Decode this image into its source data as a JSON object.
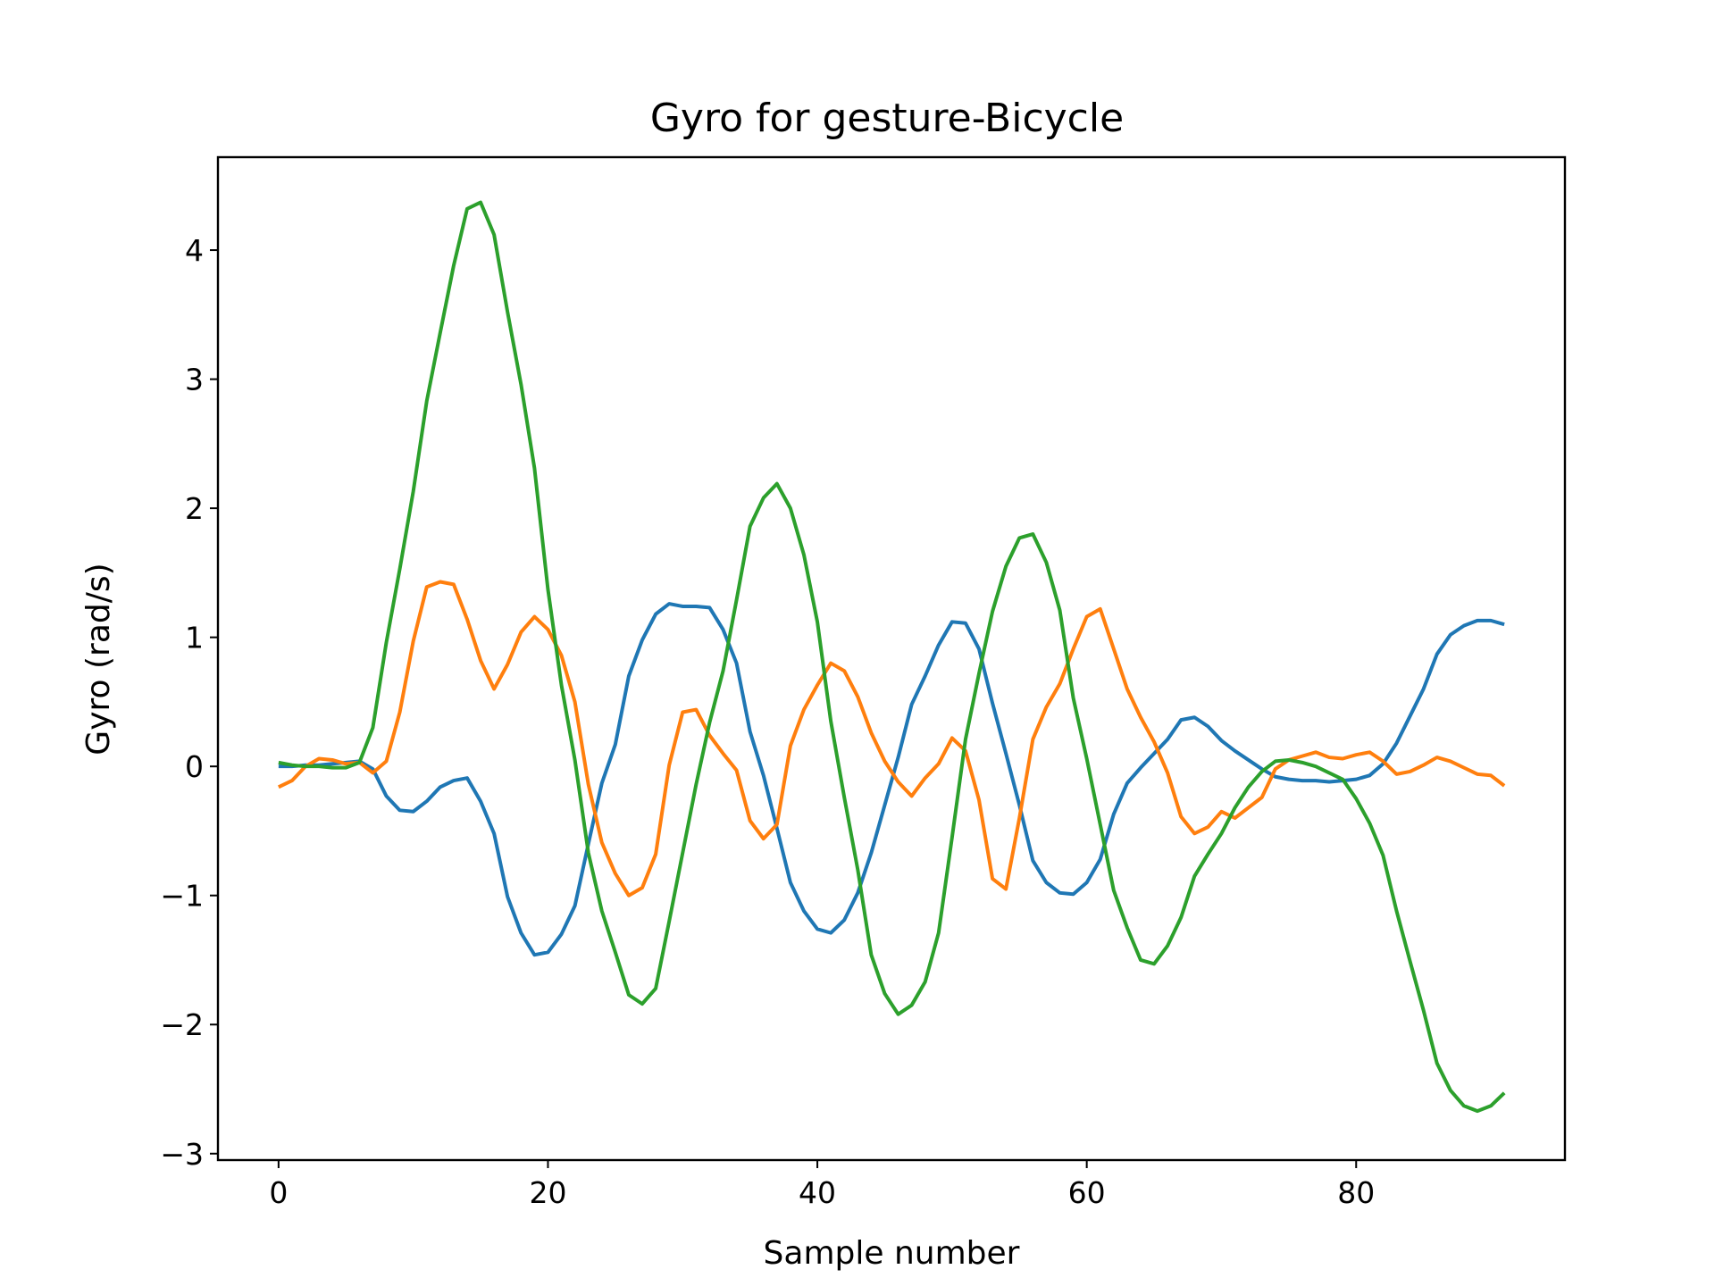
{
  "chart_data": {
    "type": "line",
    "title": "Gyro for gesture-Bicycle",
    "xlabel": "Sample number",
    "ylabel": "Gyro  (rad/s)",
    "xlim": [
      -4.5,
      95.5
    ],
    "ylim": [
      -3.05,
      4.72
    ],
    "xticks": [
      0,
      20,
      40,
      60,
      80
    ],
    "yticks": [
      -3,
      -2,
      -1,
      0,
      1,
      2,
      3,
      4
    ],
    "xtick_labels": [
      "0",
      "20",
      "40",
      "60",
      "80"
    ],
    "ytick_labels": [
      "−3",
      "−2",
      "−1",
      "0",
      "1",
      "2",
      "3",
      "4"
    ],
    "grid": false,
    "legend": "none",
    "series": [
      {
        "color": "#1f77b4",
        "values": [
          0.0,
          0.0,
          0.01,
          0.01,
          0.02,
          0.03,
          0.04,
          -0.02,
          -0.23,
          -0.34,
          -0.35,
          -0.27,
          -0.16,
          -0.11,
          -0.09,
          -0.27,
          -0.52,
          -1.01,
          -1.29,
          -1.46,
          -1.44,
          -1.3,
          -1.08,
          -0.6,
          -0.13,
          0.17,
          0.7,
          0.98,
          1.18,
          1.26,
          1.24,
          1.24,
          1.23,
          1.06,
          0.8,
          0.27,
          -0.07,
          -0.48,
          -0.9,
          -1.12,
          -1.26,
          -1.29,
          -1.19,
          -0.98,
          -0.67,
          -0.3,
          0.07,
          0.48,
          0.7,
          0.94,
          1.12,
          1.11,
          0.91,
          0.49,
          0.1,
          -0.3,
          -0.73,
          -0.9,
          -0.98,
          -0.99,
          -0.9,
          -0.72,
          -0.37,
          -0.13,
          -0.01,
          0.1,
          0.21,
          0.36,
          0.38,
          0.31,
          0.2,
          0.12,
          0.05,
          -0.02,
          -0.08,
          -0.1,
          -0.11,
          -0.11,
          -0.12,
          -0.11,
          -0.1,
          -0.07,
          0.02,
          0.18,
          0.39,
          0.6,
          0.87,
          1.02,
          1.09,
          1.13,
          1.13,
          1.1
        ]
      },
      {
        "color": "#ff7f0e",
        "values": [
          -0.16,
          -0.11,
          0.0,
          0.06,
          0.05,
          0.02,
          0.03,
          -0.05,
          0.04,
          0.42,
          0.97,
          1.39,
          1.43,
          1.41,
          1.14,
          0.82,
          0.6,
          0.79,
          1.04,
          1.16,
          1.06,
          0.86,
          0.5,
          -0.14,
          -0.59,
          -0.83,
          -1.0,
          -0.94,
          -0.68,
          0.01,
          0.42,
          0.44,
          0.24,
          0.1,
          -0.03,
          -0.42,
          -0.56,
          -0.45,
          0.16,
          0.44,
          0.63,
          0.8,
          0.74,
          0.54,
          0.26,
          0.04,
          -0.12,
          -0.23,
          -0.09,
          0.02,
          0.22,
          0.12,
          -0.26,
          -0.87,
          -0.95,
          -0.4,
          0.21,
          0.46,
          0.64,
          0.91,
          1.16,
          1.22,
          0.91,
          0.6,
          0.38,
          0.19,
          -0.05,
          -0.39,
          -0.52,
          -0.47,
          -0.35,
          -0.4,
          -0.32,
          -0.24,
          -0.02,
          0.05,
          0.08,
          0.11,
          0.07,
          0.06,
          0.09,
          0.11,
          0.04,
          -0.06,
          -0.04,
          0.01,
          0.07,
          0.04,
          -0.01,
          -0.06,
          -0.07,
          -0.15
        ]
      },
      {
        "color": "#2ca02c",
        "values": [
          0.03,
          0.01,
          0.0,
          0.0,
          -0.01,
          -0.01,
          0.03,
          0.3,
          0.96,
          1.53,
          2.13,
          2.83,
          3.36,
          3.88,
          4.32,
          4.37,
          4.12,
          3.52,
          2.96,
          2.31,
          1.37,
          0.63,
          0.05,
          -0.67,
          -1.12,
          -1.44,
          -1.77,
          -1.84,
          -1.72,
          -1.2,
          -0.67,
          -0.14,
          0.34,
          0.74,
          1.29,
          1.86,
          2.08,
          2.19,
          2.0,
          1.64,
          1.12,
          0.35,
          -0.24,
          -0.8,
          -1.46,
          -1.76,
          -1.92,
          -1.85,
          -1.67,
          -1.29,
          -0.55,
          0.21,
          0.72,
          1.2,
          1.55,
          1.77,
          1.8,
          1.58,
          1.21,
          0.53,
          0.06,
          -0.45,
          -0.96,
          -1.25,
          -1.5,
          -1.53,
          -1.39,
          -1.17,
          -0.85,
          -0.68,
          -0.52,
          -0.32,
          -0.16,
          -0.04,
          0.04,
          0.05,
          0.03,
          0.0,
          -0.05,
          -0.1,
          -0.25,
          -0.44,
          -0.69,
          -1.12,
          -1.51,
          -1.89,
          -2.3,
          -2.51,
          -2.63,
          -2.67,
          -2.63,
          -2.53
        ]
      }
    ]
  }
}
